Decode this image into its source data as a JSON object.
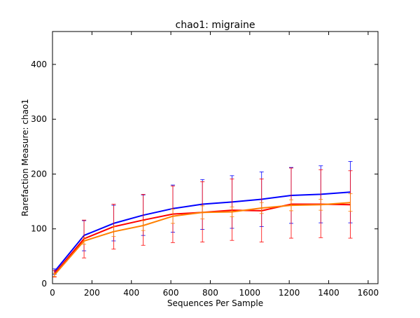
{
  "chart_data": {
    "type": "line",
    "title": "chao1: migraine",
    "xlabel": "Sequences Per Sample",
    "ylabel": "Rarefaction Measure: chao1",
    "xlim": [
      0,
      1650
    ],
    "ylim": [
      0,
      460
    ],
    "x_ticks": [
      "0",
      "200",
      "400",
      "600",
      "800",
      "1000",
      "1200",
      "1400",
      "1600"
    ],
    "y_ticks": [
      "0",
      "100",
      "200",
      "300",
      "400"
    ],
    "grid": false,
    "legend": "none",
    "series": [
      {
        "color": "#0000ff",
        "x": [
          10,
          160,
          310,
          460,
          610,
          760,
          910,
          1060,
          1210,
          1360,
          1510
        ],
        "y": [
          22,
          88,
          110,
          125,
          137,
          145,
          149,
          154,
          161,
          163,
          167
        ],
        "err_low": [
          17,
          60,
          78,
          88,
          94,
          99,
          101,
          104,
          110,
          111,
          111
        ],
        "err_high": [
          27,
          115,
          143,
          162,
          180,
          190,
          197,
          204,
          212,
          215,
          223
        ]
      },
      {
        "color": "#ff0000",
        "x": [
          10,
          160,
          310,
          460,
          610,
          760,
          910,
          1060,
          1210,
          1360,
          1510
        ],
        "y": [
          18,
          82,
          104,
          116,
          127,
          130,
          134,
          133,
          145,
          145,
          144
        ],
        "err_low": [
          12,
          47,
          63,
          70,
          75,
          76,
          79,
          76,
          83,
          84,
          83
        ],
        "err_high": [
          24,
          116,
          145,
          163,
          178,
          186,
          191,
          191,
          211,
          208,
          206
        ]
      },
      {
        "color": "#ff8000",
        "x": [
          10,
          160,
          310,
          460,
          610,
          760,
          910,
          1060,
          1210,
          1360,
          1510
        ],
        "y": [
          16,
          78,
          95,
          106,
          123,
          130,
          131,
          138,
          143,
          144,
          148
        ],
        "err_low": [
          13,
          72,
          86,
          97,
          110,
          118,
          122,
          128,
          133,
          134,
          132
        ],
        "err_high": [
          19,
          84,
          104,
          115,
          136,
          142,
          140,
          148,
          153,
          154,
          164
        ]
      }
    ]
  }
}
